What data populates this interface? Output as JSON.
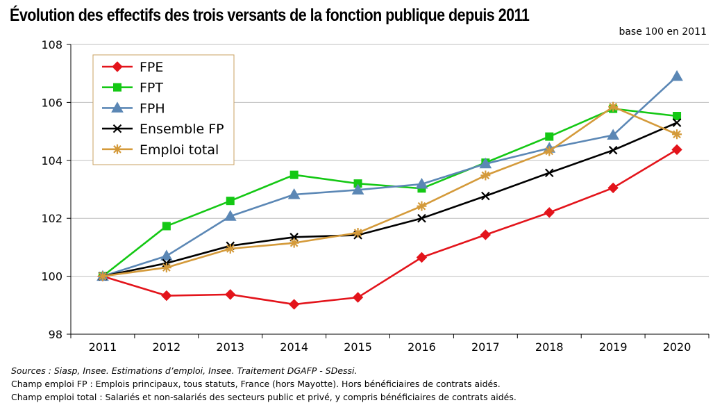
{
  "title": "Évolution des effectifs des trois versants de la fonction publique depuis 2011",
  "base_note": "base 100 en 2011",
  "notes": {
    "sources": "Sources : Siasp, Insee. Estimations d’emploi, Insee. Traitement DGAFP - SDessi.",
    "line1": "Champ emploi FP : Emplois principaux, tous statuts, France (hors Mayotte). Hors bénéficiaires de contrats aidés.",
    "line2": "Champ emploi total : Salariés et non-salariés des secteurs public et privé, y compris bénéficiaires de contrats aidés."
  },
  "chart_data": {
    "type": "line",
    "x": [
      "2011",
      "2012",
      "2013",
      "2014",
      "2015",
      "2016",
      "2017",
      "2018",
      "2019",
      "2020"
    ],
    "ylim": [
      98,
      108
    ],
    "yticks": [
      98,
      100,
      102,
      104,
      106,
      108
    ],
    "grid": true,
    "legend_position": "top-left",
    "series": [
      {
        "name": "FPE",
        "color": "#e3141b",
        "marker": "diamond",
        "values": [
          100,
          99.33,
          99.37,
          99.03,
          99.27,
          100.65,
          101.43,
          102.2,
          103.05,
          104.37
        ]
      },
      {
        "name": "FPT",
        "color": "#14c814",
        "marker": "square",
        "values": [
          100,
          101.73,
          102.6,
          103.5,
          103.2,
          103.03,
          103.92,
          104.82,
          105.78,
          105.53
        ]
      },
      {
        "name": "FPH",
        "color": "#5b87b5",
        "marker": "triangle",
        "values": [
          100,
          100.7,
          102.07,
          102.82,
          102.98,
          103.18,
          103.88,
          104.42,
          104.87,
          106.9
        ]
      },
      {
        "name": "Ensemble FP",
        "color": "#000000",
        "marker": "x",
        "values": [
          100,
          100.45,
          101.05,
          101.35,
          101.42,
          102.0,
          102.77,
          103.57,
          104.35,
          105.3
        ]
      },
      {
        "name": "Emploi total",
        "color": "#d49a3a",
        "marker": "asterisk",
        "values": [
          100,
          100.3,
          100.95,
          101.15,
          101.5,
          102.42,
          103.48,
          104.32,
          105.85,
          104.9
        ]
      }
    ]
  }
}
